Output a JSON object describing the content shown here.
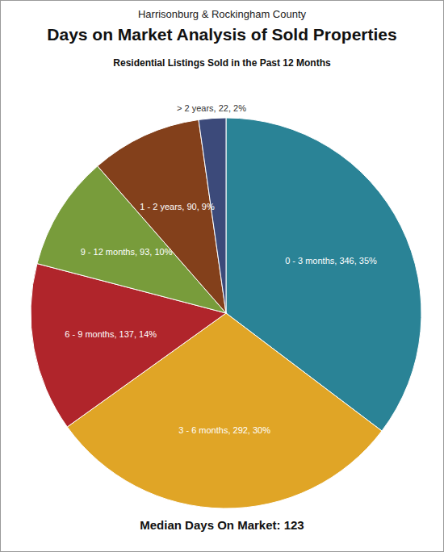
{
  "chart_data": {
    "type": "pie",
    "supertitle": "Harrisonburg & Rockingham County",
    "title": "Days on Market Analysis of Sold Properties",
    "subtitle": "Residential Listings Sold in the Past 12 Months",
    "categories": [
      "0 - 3 months",
      "3 - 6 months",
      "6 - 9 months",
      "9 - 12 months",
      "1 - 2 years",
      "> 2 years"
    ],
    "values": [
      346,
      292,
      137,
      93,
      90,
      22
    ],
    "value_labels": [
      "0 - 3 months, 346, 35%",
      "3 - 6 months, 292, 30%",
      "6 - 9 months, 137, 14%",
      "9 - 12 months, 93, 10%",
      "1 - 2 years, 90, 9%",
      "> 2 years, 22, 2%"
    ],
    "colors": [
      "#2a8396",
      "#e0a526",
      "#b0252b",
      "#789c3b",
      "#83401b",
      "#3c4a7a"
    ],
    "data_labels": true,
    "annotation": {
      "label": "Median Days On Market:",
      "value": 123
    }
  }
}
